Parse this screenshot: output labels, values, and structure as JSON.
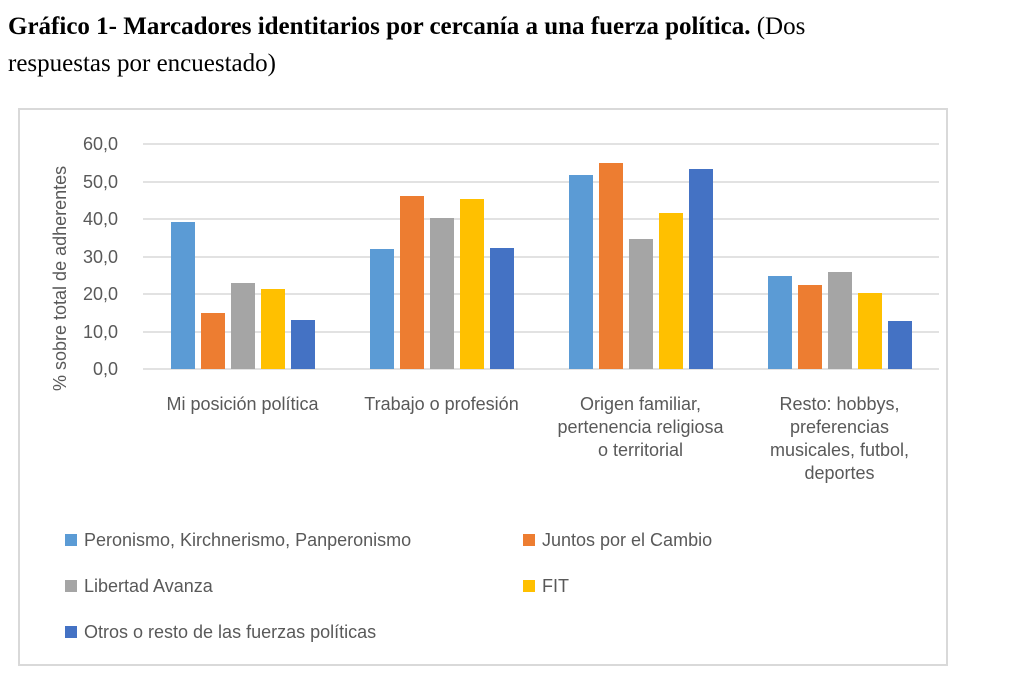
{
  "title": {
    "bold": "Gráfico 1- Marcadores identitarios por cercanía a una fuerza política.",
    "tail_line1": " (Dos",
    "line2": "respuestas por encuestado)"
  },
  "chart_data": {
    "type": "bar",
    "title": "Gráfico 1- Marcadores identitarios por cercanía a una fuerza política. (Dos respuestas por encuestado)",
    "ylabel": "% sobre total de adherentes",
    "xlabel": "",
    "ylim": [
      0,
      60
    ],
    "grid": true,
    "legend_position": "bottom-left",
    "yticks": [
      {
        "value": 60,
        "label": "60,0"
      },
      {
        "value": 50,
        "label": "50,0"
      },
      {
        "value": 40,
        "label": "40,0"
      },
      {
        "value": 30,
        "label": "30,0"
      },
      {
        "value": 20,
        "label": "20,0"
      },
      {
        "value": 10,
        "label": "10,0"
      },
      {
        "value": 0,
        "label": "0,0"
      }
    ],
    "categories": [
      "Mi posición política",
      "Trabajo o profesión",
      "Origen familiar,\npertenencia religiosa\no territorial",
      "Resto: hobbys,\npreferencias\nmusicales, futbol,\ndeportes"
    ],
    "series": [
      {
        "name": "Peronismo, Kirchnerismo, Panperonismo",
        "color": "#5B9BD5",
        "values": [
          39.3,
          32.0,
          51.8,
          24.7
        ]
      },
      {
        "name": "Juntos por el Cambio",
        "color": "#ED7D31",
        "values": [
          15.0,
          46.1,
          54.8,
          22.4
        ]
      },
      {
        "name": "Libertad Avanza",
        "color": "#A5A5A5",
        "values": [
          22.9,
          40.3,
          34.6,
          25.9
        ]
      },
      {
        "name": "FIT",
        "color": "#FFC000",
        "values": [
          21.4,
          45.4,
          41.6,
          20.2
        ]
      },
      {
        "name": "Otros o resto de las fuerzas políticas",
        "color": "#4472C4",
        "values": [
          13.0,
          32.2,
          53.2,
          12.9
        ]
      }
    ]
  },
  "colors": {
    "chart_text": "#595959",
    "gridline": "#E2E2E2",
    "box_border": "#D9D9D9",
    "title_text": "#000000"
  }
}
